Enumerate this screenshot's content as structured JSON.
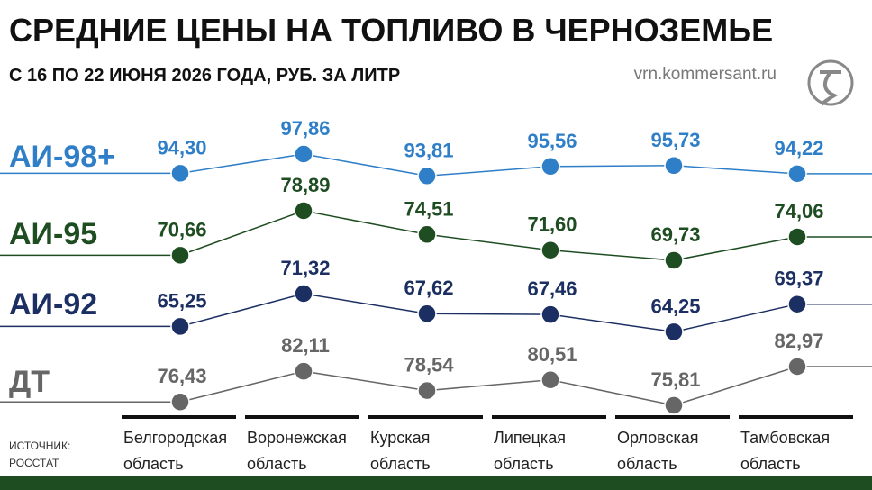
{
  "chart_data": {
    "type": "line",
    "title": "СРЕДНИЕ ЦЕНЫ НА ТОПЛИВО В ЧЕРНОЗЕМЬЕ",
    "subtitle": "С 16 ПО 22 ИЮНЯ 2026 ГОДА, РУБ. ЗА ЛИТР",
    "site": "vrn.kommersant.ru",
    "source": "ИСТОЧНИК: РОССТАТ",
    "categories": [
      "Белгородская область",
      "Воронежская область",
      "Курская область",
      "Липецкая область",
      "Орловская область",
      "Тамбовская область"
    ],
    "series": [
      {
        "name": "АИ-98+",
        "color": "#2f7fc8",
        "values": [
          94.3,
          97.86,
          93.81,
          95.56,
          95.73,
          94.22
        ],
        "value_labels": [
          "94,30",
          "97,86",
          "93,81",
          "95,56",
          "95,73",
          "94,22"
        ]
      },
      {
        "name": "АИ-95",
        "color": "#1f4d22",
        "values": [
          70.66,
          78.89,
          74.51,
          71.6,
          69.73,
          74.06
        ],
        "value_labels": [
          "70,66",
          "78,89",
          "74,51",
          "71,60",
          "69,73",
          "74,06"
        ]
      },
      {
        "name": "АИ-92",
        "color": "#1c2f62",
        "values": [
          65.25,
          71.32,
          67.62,
          67.46,
          64.25,
          69.37
        ],
        "value_labels": [
          "65,25",
          "71,32",
          "67,62",
          "67,46",
          "64,25",
          "69,37"
        ]
      },
      {
        "name": "ДТ",
        "color": "#666666",
        "values": [
          76.43,
          82.11,
          78.54,
          80.51,
          75.81,
          82.97
        ],
        "value_labels": [
          "76,43",
          "82,11",
          "78,54",
          "80,51",
          "75,81",
          "82,97"
        ]
      }
    ]
  }
}
